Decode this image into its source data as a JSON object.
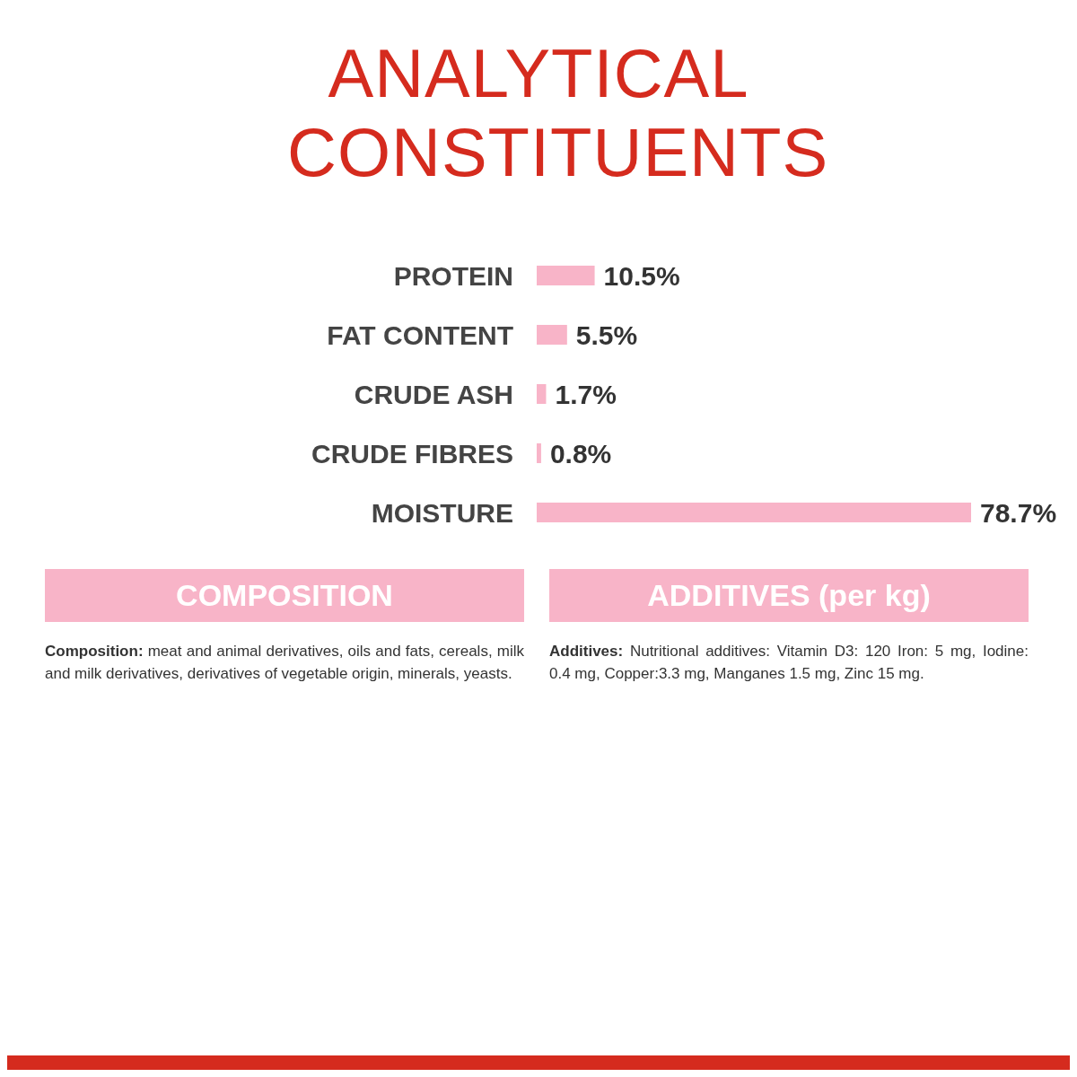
{
  "chart_data": {
    "type": "bar",
    "orientation": "horizontal",
    "title": "ANALYTICAL CONSTITUENTS",
    "categories": [
      "PROTEIN",
      "FAT CONTENT",
      "CRUDE ASH",
      "CRUDE FIBRES",
      "MOISTURE"
    ],
    "values": [
      10.5,
      5.5,
      1.7,
      0.8,
      78.7
    ],
    "value_labels": [
      "10.5%",
      "5.5%",
      "1.7%",
      "0.8%",
      "78.7%"
    ],
    "color": "#f8b4c8",
    "annotations": [
      "COMPOSITION",
      "Composition: meat and animal derivatives, oils and fats, cereals, milk and milk derivatives, derivatives of vegetable origin, minerals, yeasts.",
      "ADDITIVES (per kg)",
      "Additives: Nutritional additives: Vitamin D3: 120 Iron: 5 mg, Iodine: 0.4 mg, Copper:3.3 mg, Manganes 1.5 mg, Zinc 15 mg."
    ]
  }
}
